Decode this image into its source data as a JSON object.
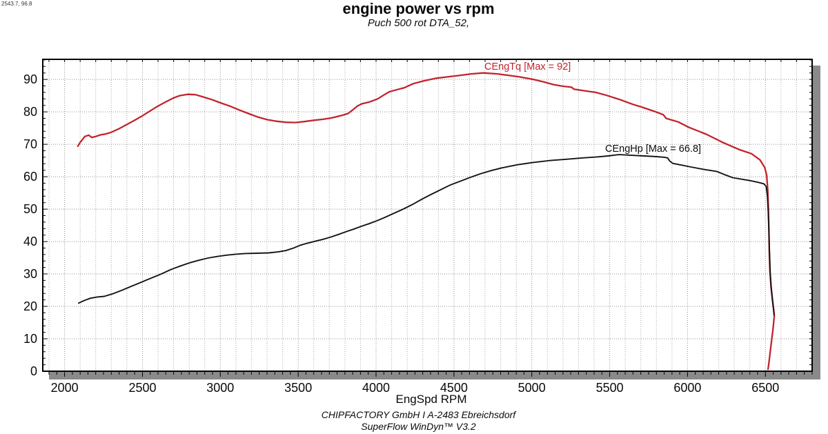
{
  "chart_data": {
    "type": "line",
    "title": "engine power vs rpm",
    "subtitle": "Puch 500 rot DTA_52,",
    "xlabel": "EngSpd RPM",
    "ylabel": "",
    "cursor_readout": "2543.7, 96.8",
    "xlim": [
      1860,
      6800
    ],
    "ylim": [
      0,
      96.2
    ],
    "x_ticks": [
      2000,
      2500,
      3000,
      3500,
      4000,
      4500,
      5000,
      5500,
      6000,
      6500
    ],
    "y_ticks": [
      0,
      10,
      20,
      30,
      40,
      50,
      60,
      70,
      80,
      90
    ],
    "x_minor_grid_step": 100,
    "x_minor_tick_step": 50,
    "y_minor_tick_step": 2,
    "grid": "dotted",
    "legend_position": "inline-labels",
    "series": [
      {
        "name": "CEngTq",
        "label": "CEngTq [Max = 92]",
        "max": 92,
        "color": "#c2232b",
        "points": [
          [
            2085,
            69.4
          ],
          [
            2100,
            70.6
          ],
          [
            2115,
            71.5
          ],
          [
            2130,
            72.4
          ],
          [
            2155,
            72.8
          ],
          [
            2175,
            72.1
          ],
          [
            2200,
            72.4
          ],
          [
            2230,
            72.9
          ],
          [
            2265,
            73.2
          ],
          [
            2300,
            73.7
          ],
          [
            2350,
            74.8
          ],
          [
            2400,
            76.1
          ],
          [
            2450,
            77.4
          ],
          [
            2500,
            78.8
          ],
          [
            2550,
            80.3
          ],
          [
            2600,
            81.8
          ],
          [
            2650,
            83.1
          ],
          [
            2700,
            84.3
          ],
          [
            2740,
            85.0
          ],
          [
            2790,
            85.4
          ],
          [
            2840,
            85.3
          ],
          [
            2890,
            84.6
          ],
          [
            2950,
            83.7
          ],
          [
            3000,
            82.8
          ],
          [
            3060,
            81.8
          ],
          [
            3120,
            80.6
          ],
          [
            3180,
            79.5
          ],
          [
            3240,
            78.4
          ],
          [
            3300,
            77.6
          ],
          [
            3360,
            77.1
          ],
          [
            3420,
            76.8
          ],
          [
            3480,
            76.7
          ],
          [
            3540,
            77.0
          ],
          [
            3600,
            77.4
          ],
          [
            3660,
            77.7
          ],
          [
            3720,
            78.2
          ],
          [
            3780,
            78.9
          ],
          [
            3820,
            79.5
          ],
          [
            3850,
            80.6
          ],
          [
            3880,
            81.8
          ],
          [
            3910,
            82.5
          ],
          [
            3960,
            83.1
          ],
          [
            4010,
            84.0
          ],
          [
            4050,
            85.2
          ],
          [
            4085,
            86.2
          ],
          [
            4130,
            86.8
          ],
          [
            4180,
            87.4
          ],
          [
            4240,
            88.7
          ],
          [
            4310,
            89.6
          ],
          [
            4390,
            90.4
          ],
          [
            4460,
            90.8
          ],
          [
            4530,
            91.2
          ],
          [
            4610,
            91.7
          ],
          [
            4690,
            92.0
          ],
          [
            4780,
            91.7
          ],
          [
            4860,
            91.2
          ],
          [
            4920,
            90.8
          ],
          [
            5010,
            90.0
          ],
          [
            5080,
            89.2
          ],
          [
            5140,
            88.4
          ],
          [
            5200,
            87.9
          ],
          [
            5255,
            87.6
          ],
          [
            5270,
            87.0
          ],
          [
            5340,
            86.5
          ],
          [
            5410,
            86.0
          ],
          [
            5480,
            85.1
          ],
          [
            5570,
            83.7
          ],
          [
            5650,
            82.3
          ],
          [
            5710,
            81.4
          ],
          [
            5790,
            80.1
          ],
          [
            5845,
            79.1
          ],
          [
            5862,
            78.0
          ],
          [
            5940,
            76.9
          ],
          [
            6010,
            75.2
          ],
          [
            6120,
            73.1
          ],
          [
            6230,
            70.5
          ],
          [
            6330,
            68.4
          ],
          [
            6410,
            67.1
          ],
          [
            6465,
            65.2
          ],
          [
            6495,
            62.9
          ],
          [
            6508,
            60.5
          ],
          [
            6515,
            56.0
          ],
          [
            6519,
            50.0
          ],
          [
            6522,
            44.0
          ],
          [
            6525,
            37.0
          ],
          [
            6529,
            31.0
          ],
          [
            6536,
            26.0
          ],
          [
            6545,
            22.0
          ],
          [
            6553,
            19.0
          ],
          [
            6557,
            17.0
          ],
          [
            6549,
            13.0
          ],
          [
            6536,
            8.0
          ],
          [
            6525,
            3.5
          ],
          [
            6517,
            0.6
          ]
        ]
      },
      {
        "name": "CEngHp",
        "label": "CEngHp [Max = 66.8]",
        "max": 66.8,
        "color": "#141414",
        "points": [
          [
            2090,
            21.0
          ],
          [
            2125,
            21.8
          ],
          [
            2165,
            22.5
          ],
          [
            2210,
            22.9
          ],
          [
            2255,
            23.1
          ],
          [
            2310,
            23.9
          ],
          [
            2370,
            25.0
          ],
          [
            2420,
            26.0
          ],
          [
            2470,
            27.0
          ],
          [
            2520,
            28.0
          ],
          [
            2570,
            29.0
          ],
          [
            2625,
            30.1
          ],
          [
            2680,
            31.3
          ],
          [
            2740,
            32.4
          ],
          [
            2800,
            33.4
          ],
          [
            2860,
            34.2
          ],
          [
            2920,
            34.9
          ],
          [
            2980,
            35.4
          ],
          [
            3040,
            35.8
          ],
          [
            3100,
            36.1
          ],
          [
            3160,
            36.3
          ],
          [
            3240,
            36.4
          ],
          [
            3310,
            36.5
          ],
          [
            3370,
            36.8
          ],
          [
            3420,
            37.2
          ],
          [
            3470,
            38.0
          ],
          [
            3510,
            38.8
          ],
          [
            3560,
            39.5
          ],
          [
            3610,
            40.1
          ],
          [
            3660,
            40.7
          ],
          [
            3710,
            41.4
          ],
          [
            3760,
            42.2
          ],
          [
            3805,
            43.0
          ],
          [
            3855,
            43.8
          ],
          [
            3905,
            44.7
          ],
          [
            3955,
            45.5
          ],
          [
            4005,
            46.4
          ],
          [
            4055,
            47.4
          ],
          [
            4105,
            48.5
          ],
          [
            4170,
            49.9
          ],
          [
            4240,
            51.6
          ],
          [
            4300,
            53.2
          ],
          [
            4360,
            54.7
          ],
          [
            4420,
            56.1
          ],
          [
            4475,
            57.4
          ],
          [
            4535,
            58.5
          ],
          [
            4600,
            59.7
          ],
          [
            4670,
            60.9
          ],
          [
            4740,
            61.9
          ],
          [
            4805,
            62.7
          ],
          [
            4910,
            63.7
          ],
          [
            5010,
            64.4
          ],
          [
            5120,
            65.0
          ],
          [
            5230,
            65.4
          ],
          [
            5330,
            65.8
          ],
          [
            5420,
            66.1
          ],
          [
            5490,
            66.4
          ],
          [
            5560,
            66.8
          ],
          [
            5640,
            66.6
          ],
          [
            5720,
            66.4
          ],
          [
            5800,
            66.2
          ],
          [
            5850,
            66.0
          ],
          [
            5872,
            65.8
          ],
          [
            5886,
            64.8
          ],
          [
            5905,
            64.1
          ],
          [
            5960,
            63.6
          ],
          [
            6010,
            63.1
          ],
          [
            6100,
            62.3
          ],
          [
            6190,
            61.6
          ],
          [
            6245,
            60.5
          ],
          [
            6290,
            59.7
          ],
          [
            6350,
            59.2
          ],
          [
            6400,
            58.8
          ],
          [
            6450,
            58.3
          ],
          [
            6490,
            57.8
          ],
          [
            6505,
            57.0
          ],
          [
            6513,
            54.0
          ],
          [
            6518,
            49.0
          ],
          [
            6522,
            43.5
          ],
          [
            6526,
            37.0
          ],
          [
            6531,
            30.0
          ],
          [
            6538,
            25.5
          ],
          [
            6547,
            21.5
          ],
          [
            6553,
            18.5
          ],
          [
            6556,
            17.3
          ]
        ]
      }
    ]
  },
  "footer": {
    "line1": "CHIPFACTORY GmbH I A-2483 Ebreichsdorf",
    "line2": "SuperFlow WinDyn™ V3.2"
  },
  "colors": {
    "torque": "#c2232b",
    "power": "#141414",
    "grid": "#9a9a9a",
    "shadow": "#8a8a8a",
    "frame": "#000000"
  }
}
